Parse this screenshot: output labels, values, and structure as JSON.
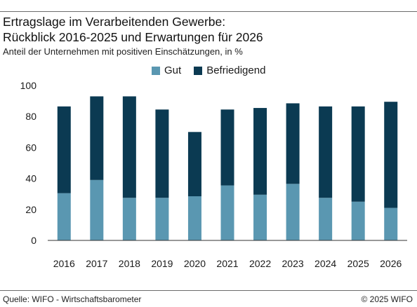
{
  "header": {
    "title_line1": "Ertragslage im Verarbeitenden Gewerbe:",
    "title_line2": "Rückblick 2016-2025 und Erwartungen für 2026",
    "subtitle": "Anteil der Unternehmen mit positiven Einschätzungen, in %"
  },
  "footer": {
    "source": "Quelle: WIFO - Wirtschaftsbarometer",
    "copyright": "© 2025 WIFO"
  },
  "colors": {
    "gut": "#5a97b1",
    "befriedigend": "#0b3a52",
    "axis": "#333333"
  },
  "chart_data": {
    "type": "bar",
    "stacked": true,
    "categories": [
      "2016",
      "2017",
      "2018",
      "2019",
      "2020",
      "2021",
      "2022",
      "2023",
      "2024",
      "2025",
      "2026"
    ],
    "series": [
      {
        "name": "Gut",
        "values": [
          30.5,
          39.0,
          27.5,
          27.5,
          28.5,
          35.5,
          29.5,
          36.5,
          27.5,
          25.0,
          21.0
        ]
      },
      {
        "name": "Befriedigend",
        "values": [
          56.0,
          54.0,
          65.5,
          57.0,
          41.5,
          49.0,
          56.0,
          52.0,
          59.0,
          61.5,
          68.5
        ]
      }
    ],
    "ylim": [
      0,
      100
    ],
    "yticks": [
      "0",
      "20",
      "40",
      "60",
      "80",
      "100"
    ],
    "ytick_values": [
      0,
      20,
      40,
      60,
      80,
      100
    ],
    "legend_position": "top-center",
    "grid": false
  }
}
